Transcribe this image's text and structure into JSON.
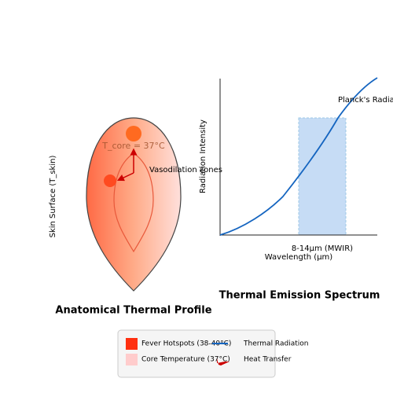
{
  "left_panel": {
    "title": "Anatomical Thermal Profile",
    "core_label": "T_core = 37°C",
    "zones_label": "Vasodilation zones",
    "axis_label": "Skin Surface (T_skin)"
  },
  "right_panel": {
    "title": "Thermal Emission Spectrum",
    "y_label": "Radiation Intensity",
    "x_label": "Wavelength (μm)",
    "curve_label": "Planck's Radiation",
    "band_label": "8-14μm (MWIR)"
  },
  "legend": {
    "items": [
      "Fever Hotspots (38-40°C)",
      "Thermal Radiation",
      "Core Temperature (37°C)",
      "Heat Transfer"
    ]
  }
}
